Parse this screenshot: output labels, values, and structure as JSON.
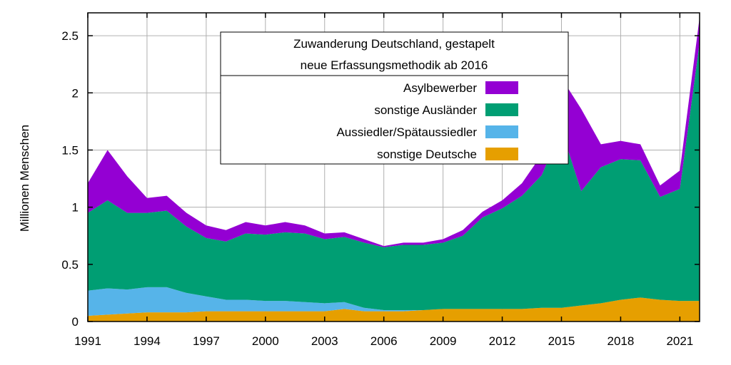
{
  "chart_data": {
    "type": "area",
    "stacked": true,
    "title_lines": [
      "Zuwanderung Deutschland, gestapelt",
      "neue Erfassungsmethodik ab 2016"
    ],
    "ylabel": "Millionen Menschen",
    "xlim": [
      1991,
      2022
    ],
    "ylim": [
      0,
      2.7
    ],
    "x_ticks": [
      1991,
      1994,
      1997,
      2000,
      2003,
      2006,
      2009,
      2012,
      2015,
      2018,
      2021
    ],
    "x_tick_labels": [
      "1991",
      "1994",
      "1997",
      "2000",
      "2003",
      "2006",
      "2009",
      "2012",
      "2015",
      "2018",
      "2021"
    ],
    "y_ticks": [
      0,
      0.5,
      1,
      1.5,
      2,
      2.5
    ],
    "y_tick_labels": [
      "0",
      "0.5",
      "1",
      "1.5",
      "2",
      "2.5"
    ],
    "grid": true,
    "legend_placement": "top-center",
    "x": [
      1991,
      1992,
      1993,
      1994,
      1995,
      1996,
      1997,
      1998,
      1999,
      2000,
      2001,
      2002,
      2003,
      2004,
      2005,
      2006,
      2007,
      2008,
      2009,
      2010,
      2011,
      2012,
      2013,
      2014,
      2015,
      2016,
      2017,
      2018,
      2019,
      2020,
      2021,
      2022
    ],
    "series": [
      {
        "name": "sonstige Deutsche",
        "color": "#e69f00",
        "values": [
          0.05,
          0.06,
          0.07,
          0.08,
          0.08,
          0.08,
          0.09,
          0.09,
          0.09,
          0.09,
          0.09,
          0.09,
          0.09,
          0.11,
          0.09,
          0.09,
          0.09,
          0.1,
          0.11,
          0.11,
          0.11,
          0.11,
          0.11,
          0.12,
          0.12,
          0.14,
          0.16,
          0.19,
          0.21,
          0.19,
          0.18,
          0.18
        ]
      },
      {
        "name": "Aussiedler/Spätaussiedler",
        "color": "#56b4e9",
        "values": [
          0.22,
          0.23,
          0.21,
          0.22,
          0.22,
          0.17,
          0.13,
          0.1,
          0.1,
          0.09,
          0.09,
          0.08,
          0.07,
          0.06,
          0.03,
          0.01,
          0.01,
          0.0,
          0.0,
          0.0,
          0.0,
          0.0,
          0.0,
          0.0,
          0.0,
          0.0,
          0.0,
          0.0,
          0.0,
          0.0,
          0.0,
          0.0
        ]
      },
      {
        "name": "sonstige Ausländer",
        "color": "#009e73",
        "values": [
          0.68,
          0.77,
          0.67,
          0.65,
          0.67,
          0.58,
          0.51,
          0.51,
          0.58,
          0.58,
          0.6,
          0.6,
          0.56,
          0.57,
          0.57,
          0.55,
          0.57,
          0.57,
          0.58,
          0.64,
          0.8,
          0.88,
          0.99,
          1.16,
          1.56,
          1.0,
          1.19,
          1.23,
          1.2,
          0.9,
          0.98,
          2.26
        ]
      },
      {
        "name": "Asylbewerber",
        "color": "#9400d3",
        "values": [
          0.26,
          0.44,
          0.32,
          0.13,
          0.13,
          0.12,
          0.11,
          0.1,
          0.1,
          0.08,
          0.09,
          0.07,
          0.05,
          0.04,
          0.03,
          0.01,
          0.02,
          0.02,
          0.03,
          0.05,
          0.05,
          0.07,
          0.11,
          0.18,
          0.45,
          0.72,
          0.2,
          0.16,
          0.14,
          0.1,
          0.16,
          0.22
        ]
      }
    ]
  }
}
